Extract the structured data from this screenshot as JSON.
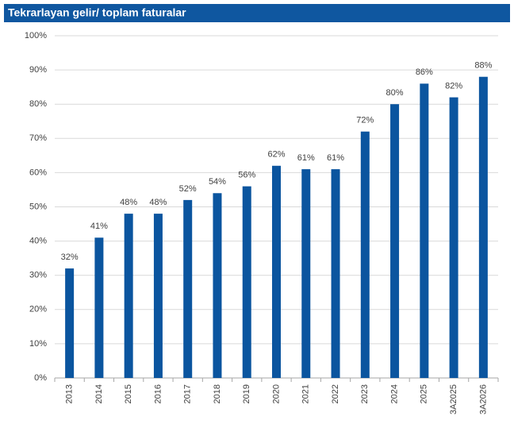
{
  "chart_data": {
    "type": "bar",
    "title": "Tekrarlayan gelir/ toplam faturalar",
    "categories": [
      "2013",
      "2014",
      "2015",
      "2016",
      "2017",
      "2018",
      "2019",
      "2020",
      "2021",
      "2022",
      "2023",
      "2024",
      "2025",
      "3A2025",
      "3A2026"
    ],
    "values": [
      32,
      41,
      48,
      48,
      52,
      54,
      56,
      62,
      61,
      61,
      72,
      80,
      86,
      82,
      88
    ],
    "value_labels": [
      "32%",
      "41%",
      "48%",
      "48%",
      "52%",
      "54%",
      "56%",
      "62%",
      "61%",
      "61%",
      "72%",
      "80%",
      "86%",
      "82%",
      "88%"
    ],
    "color": "#0b559f",
    "ylim": [
      0,
      100
    ],
    "yticks": [
      {
        "value": 0,
        "label": "0%"
      },
      {
        "value": 10,
        "label": "10%"
      },
      {
        "value": 20,
        "label": "20%"
      },
      {
        "value": 30,
        "label": "30%"
      },
      {
        "value": 40,
        "label": "40%"
      },
      {
        "value": 50,
        "label": "50%"
      },
      {
        "value": 60,
        "label": "60%"
      },
      {
        "value": 70,
        "label": "70%"
      },
      {
        "value": 80,
        "label": "80%"
      },
      {
        "value": 90,
        "label": "90%"
      },
      {
        "value": 100,
        "label": "100%"
      }
    ],
    "grid": true
  }
}
